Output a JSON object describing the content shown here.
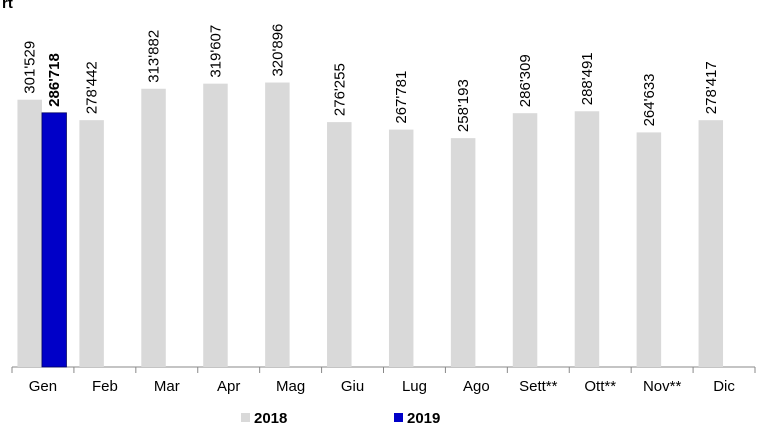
{
  "chart_data": {
    "type": "bar",
    "title": "rt",
    "categories": [
      "Gen",
      "Feb",
      "Mar",
      "Apr",
      "Mag",
      "Giu",
      "Lug",
      "Ago",
      "Sett**",
      "Ott**",
      "Nov**",
      "Dic"
    ],
    "series": [
      {
        "name": "2018",
        "color": "#d9d9d9",
        "values": [
          301529,
          278442,
          313882,
          319607,
          320896,
          276255,
          267781,
          258193,
          286309,
          288491,
          264633,
          278417
        ],
        "value_labels": [
          "301'529",
          "278'442",
          "313'882",
          "319'607",
          "320'896",
          "276'255",
          "267'781",
          "258'193",
          "286'309",
          "288'491",
          "264'633",
          "278'417"
        ]
      },
      {
        "name": "2019",
        "color": "#0000c8",
        "values": [
          286718,
          null,
          null,
          null,
          null,
          null,
          null,
          null,
          null,
          null,
          null,
          null
        ],
        "value_labels": [
          "286'718",
          null,
          null,
          null,
          null,
          null,
          null,
          null,
          null,
          null,
          null,
          null
        ]
      }
    ],
    "ylim": [
      0,
      414000
    ]
  }
}
